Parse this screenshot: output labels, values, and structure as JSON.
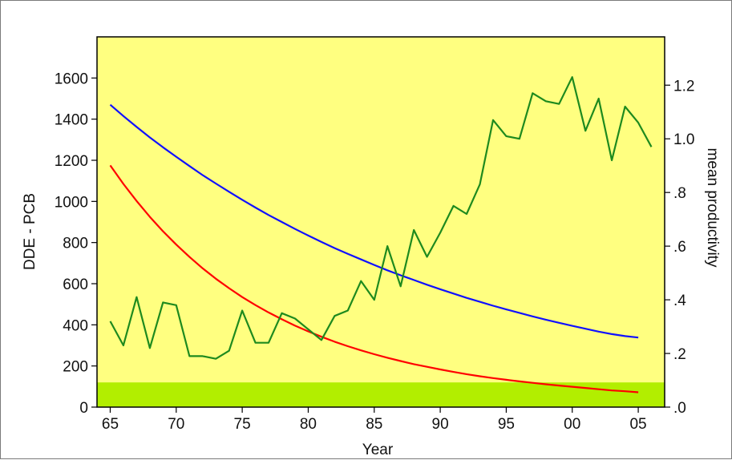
{
  "chart_data": {
    "type": "line",
    "xlabel": "Year",
    "ylabel_left": "DDE - PCB",
    "ylabel_right": "mean productivity",
    "x_ticks": [
      {
        "value": 1965,
        "label": "65"
      },
      {
        "value": 1970,
        "label": "70"
      },
      {
        "value": 1975,
        "label": "75"
      },
      {
        "value": 1980,
        "label": "80"
      },
      {
        "value": 1985,
        "label": "85"
      },
      {
        "value": 1990,
        "label": "90"
      },
      {
        "value": 1995,
        "label": "95"
      },
      {
        "value": 2000,
        "label": "00"
      },
      {
        "value": 2005,
        "label": "05"
      }
    ],
    "xlim": [
      1964,
      2007
    ],
    "ylim_left": [
      0,
      1800
    ],
    "yticks_left": [
      {
        "value": 0,
        "label": "0"
      },
      {
        "value": 200,
        "label": "200"
      },
      {
        "value": 400,
        "label": "400"
      },
      {
        "value": 600,
        "label": "600"
      },
      {
        "value": 800,
        "label": "800"
      },
      {
        "value": 1000,
        "label": "1000"
      },
      {
        "value": 1200,
        "label": "1200"
      },
      {
        "value": 1400,
        "label": "1400"
      },
      {
        "value": 1600,
        "label": "1600"
      }
    ],
    "ylim_right": [
      0,
      1.38
    ],
    "yticks_right": [
      {
        "value": 0,
        "label": ".0"
      },
      {
        "value": 0.2,
        "label": ".2"
      },
      {
        "value": 0.4,
        "label": ".4"
      },
      {
        "value": 0.6,
        "label": ".6"
      },
      {
        "value": 0.8,
        "label": ".8"
      },
      {
        "value": 1.0,
        "label": "1.0"
      },
      {
        "value": 1.2,
        "label": "1.2"
      }
    ],
    "background_color": "#ffff80",
    "band": {
      "axis": "left",
      "from": 0,
      "to": 120,
      "color": "#b2ee00"
    },
    "series": [
      {
        "axis": "left",
        "color": "#1010ff",
        "x": [
          1965,
          1966,
          1967,
          1968,
          1969,
          1970,
          1971,
          1972,
          1973,
          1974,
          1975,
          1976,
          1977,
          1978,
          1979,
          1980,
          1981,
          1982,
          1983,
          1984,
          1985,
          1986,
          1987,
          1988,
          1989,
          1990,
          1991,
          1992,
          1993,
          1994,
          1995,
          1996,
          1997,
          1998,
          1999,
          2000,
          2001,
          2002,
          2003,
          2004,
          2005
        ],
        "values": [
          1470,
          1415,
          1362,
          1311,
          1263,
          1217,
          1172,
          1128,
          1087,
          1047,
          1008,
          970,
          934,
          900,
          866,
          834,
          803,
          773,
          745,
          718,
          691,
          665,
          641,
          618,
          595,
          573,
          552,
          531,
          512,
          493,
          475,
          458,
          441,
          425,
          410,
          395,
          381,
          367,
          355,
          345,
          338
        ]
      },
      {
        "axis": "left",
        "color": "#ff0000",
        "x": [
          1965,
          1966,
          1967,
          1968,
          1969,
          1970,
          1971,
          1972,
          1973,
          1974,
          1975,
          1976,
          1977,
          1978,
          1979,
          1980,
          1981,
          1982,
          1983,
          1984,
          1985,
          1986,
          1987,
          1988,
          1989,
          1990,
          1991,
          1992,
          1993,
          1994,
          1995,
          1996,
          1997,
          1998,
          1999,
          2000,
          2001,
          2002,
          2003,
          2004,
          2005
        ],
        "values": [
          1175,
          1085,
          1002,
          925,
          855,
          790,
          730,
          675,
          624,
          578,
          535,
          496,
          460,
          427,
          396,
          368,
          342,
          318,
          296,
          276,
          257,
          240,
          224,
          209,
          196,
          183,
          171,
          160,
          150,
          141,
          133,
          125,
          118,
          111,
          105,
          99,
          93,
          87,
          81,
          77,
          72
        ]
      },
      {
        "axis": "right",
        "color": "#1e8a1e",
        "x": [
          1965,
          1966,
          1967,
          1968,
          1969,
          1970,
          1971,
          1972,
          1973,
          1974,
          1975,
          1976,
          1977,
          1978,
          1979,
          1980,
          1981,
          1982,
          1983,
          1984,
          1985,
          1986,
          1987,
          1988,
          1989,
          1990,
          1991,
          1992,
          1993,
          1994,
          1995,
          1996,
          1997,
          1998,
          1999,
          2000,
          2001,
          2002,
          2003,
          2004,
          2005,
          2006
        ],
        "values": [
          0.32,
          0.23,
          0.41,
          0.22,
          0.39,
          0.38,
          0.19,
          0.19,
          0.18,
          0.21,
          0.36,
          0.24,
          0.24,
          0.35,
          0.33,
          0.29,
          0.25,
          0.34,
          0.36,
          0.47,
          0.4,
          0.6,
          0.45,
          0.66,
          0.56,
          0.65,
          0.75,
          0.72,
          0.83,
          1.07,
          1.01,
          1.0,
          1.17,
          1.14,
          1.13,
          1.23,
          1.03,
          1.15,
          0.92,
          1.12,
          1.06,
          0.97
        ]
      }
    ]
  }
}
